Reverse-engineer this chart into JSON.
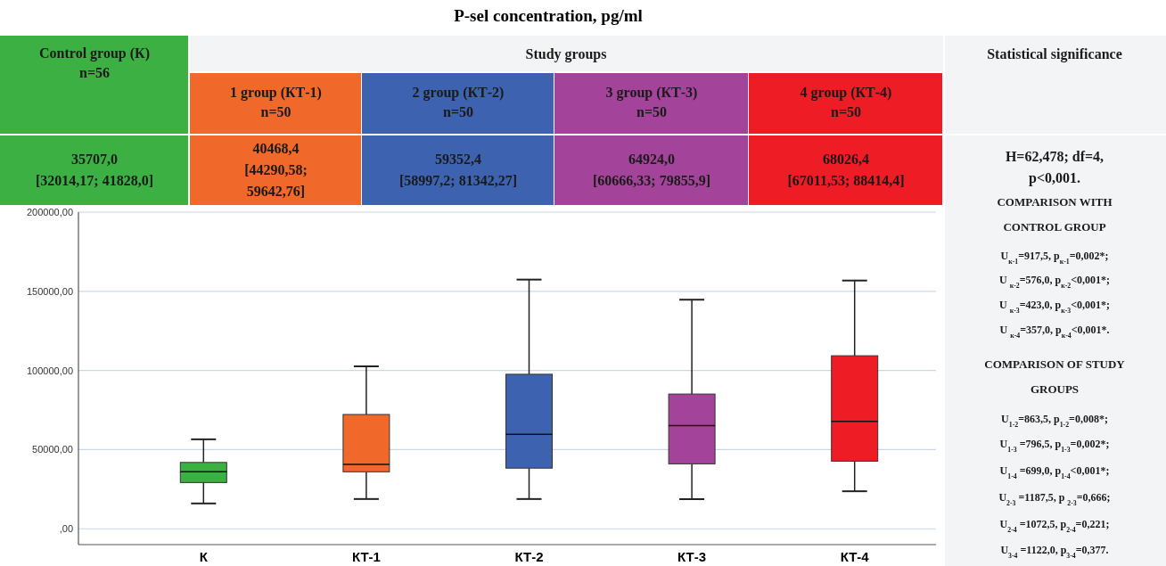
{
  "chart_data": {
    "type": "box",
    "title": "P-sel concentration, pg/ml",
    "categories": [
      "К",
      "КТ-1",
      "КТ-2",
      "КТ-3",
      "КТ-4"
    ],
    "colors": [
      "#3cb043",
      "#f0682a",
      "#3d62b0",
      "#a3449a",
      "#ee1c24"
    ],
    "boxes": [
      {
        "low": 16000,
        "q1": 29200,
        "median": 36000,
        "q3": 41900,
        "high": 56500
      },
      {
        "low": 18800,
        "q1": 36000,
        "median": 40700,
        "q3": 72200,
        "high": 102600
      },
      {
        "low": 18800,
        "q1": 38300,
        "median": 59700,
        "q3": 97600,
        "high": 157400
      },
      {
        "low": 18700,
        "q1": 41000,
        "median": 65200,
        "q3": 85100,
        "high": 144700
      },
      {
        "low": 23700,
        "q1": 42700,
        "median": 67800,
        "q3": 109300,
        "high": 156800
      }
    ],
    "ylim": [
      -10000,
      200000
    ],
    "yticks": [
      {
        "value": 0,
        "label": ",00"
      },
      {
        "value": 50000,
        "label": "50000,00"
      },
      {
        "value": 100000,
        "label": "100000,00"
      },
      {
        "value": 150000,
        "label": "150000,00"
      },
      {
        "value": 200000,
        "label": "200000,00"
      }
    ],
    "grid": "y",
    "annotations": [
      "Control group (К)\nn=56",
      "Study groups",
      "Statistical significance",
      "1 group (КТ-1)\nn=50",
      "2 group (КТ-2)\nn=50",
      "3 group (КТ-3)\nn=50",
      "4 group (КТ-4)\nn=50",
      "35707,0\n[32014,17; 41828,0]",
      "40468,4\n[44290,58;\n59642,76]",
      "59352,4\n[58997,2; 81342,27]",
      "64924,0\n[60666,33; 79855,9]",
      "68026,4\n[67011,53; 88414,4]",
      "H=62,478; df=4,\np<0,001.",
      "COMPARISON WITH\nCONTROL GROUP",
      "U$_{к-1}$=917,5, p$_{к-1}$=0,002*;",
      "U $_{к-2}$=576,0, p$_{к-2}$<0,001*;",
      "U $_{к-3}$=423,0, p$_{к-3}$<0,001*;",
      "U $_{к-4}$=357,0, p$_{к-4}$<0,001*.",
      "COMPARISON OF STUDY\nGROUPS",
      "U$_{1-2}$=863,5, p$_{1-2}$=0,008*;",
      "U$_{1-3}$ =796,5, p$_{1-3}$=0,002*;",
      "U$_{1-4}$ =699,0, p$_{1-4}$<0,001*;",
      "U$_{2-3}$ =1187,5, p $_{2-3}$=0,666;",
      "U$_{2-4}$ =1072,5, p$_{2-4}$=0,221;",
      "U$_{3-4}$ =1122,0, p$_{3-4}$=0,377."
    ]
  }
}
